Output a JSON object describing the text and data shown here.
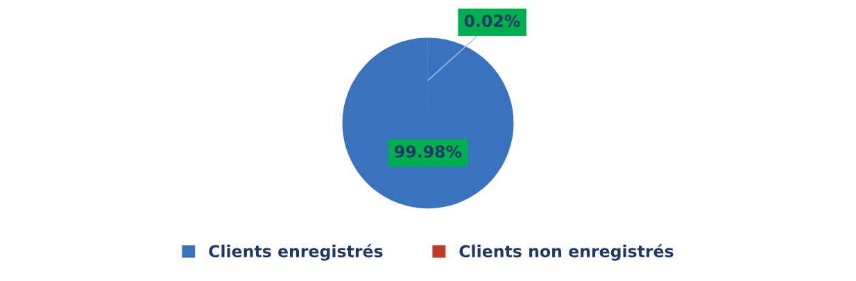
{
  "chart_data": {
    "type": "pie",
    "categories": [
      "Clients enregistrés",
      "Clients non enregistrés"
    ],
    "values": [
      99.98,
      0.02
    ],
    "colors": [
      "#3a72c0",
      "#c0392b"
    ],
    "value_labels": [
      "99.98%",
      "0.02%"
    ],
    "legend": "bottom"
  }
}
